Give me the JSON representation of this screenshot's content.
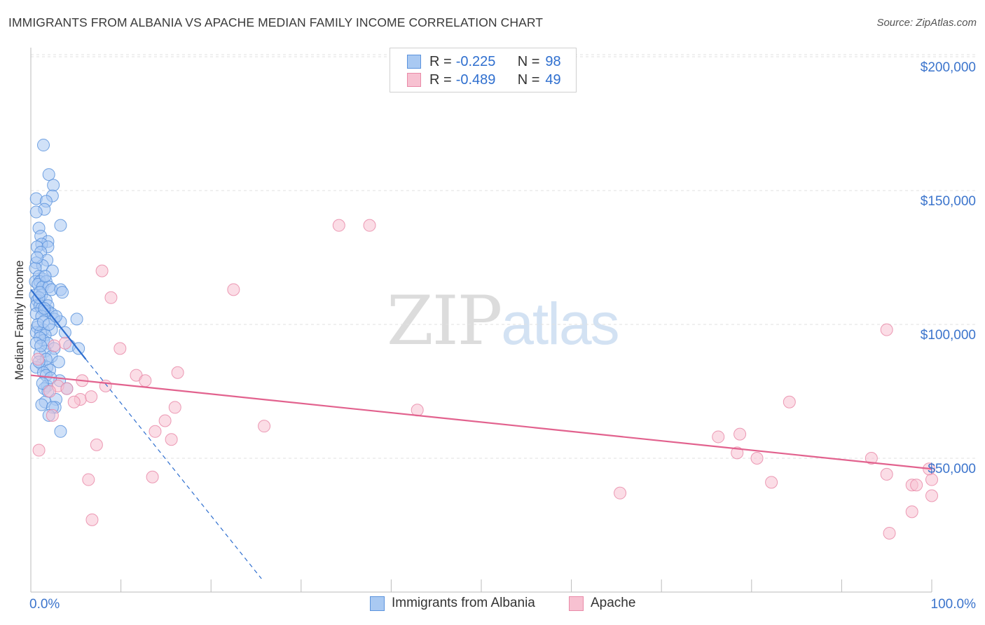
{
  "title": "IMMIGRANTS FROM ALBANIA VS APACHE MEDIAN FAMILY INCOME CORRELATION CHART",
  "source": "Source: ZipAtlas.com",
  "watermark": {
    "zip": "ZIP",
    "atlas": "atlas"
  },
  "colors": {
    "blue_fill": "#a9c9f2",
    "blue_stroke": "#5b93dd",
    "blue_line": "#2f6fcf",
    "pink_fill": "#f7c1d1",
    "pink_stroke": "#e98aa8",
    "pink_line": "#e2628e",
    "tick_text": "#3b74cc",
    "grid": "#e2e2e2"
  },
  "legend": {
    "rows": [
      {
        "r_label": "R =",
        "r_value": "-0.225",
        "n_label": "N =",
        "n_value": "98"
      },
      {
        "r_label": "R =",
        "r_value": "-0.489",
        "n_label": "N =",
        "n_value": "49"
      }
    ]
  },
  "bottom_legend": [
    "Immigrants from Albania",
    "Apache"
  ],
  "chart_data": {
    "type": "scatter",
    "xlabel": "",
    "ylabel": "Median Family Income",
    "xlim": [
      0,
      100
    ],
    "ylim": [
      0,
      205000
    ],
    "x_tick_labels": [
      "0.0%",
      "100.0%"
    ],
    "y_ticks": [
      50000,
      100000,
      150000,
      200000
    ],
    "y_tick_labels": [
      "$50,000",
      "$100,000",
      "$150,000",
      "$200,000"
    ],
    "series": [
      {
        "name": "Immigrants from Albania",
        "color": "blue",
        "trend": {
          "x": [
            0,
            6.1
          ],
          "y": [
            113000,
            87000
          ],
          "dashed_to": [
            25.6,
            5000
          ]
        },
        "points": [
          [
            1.4,
            167000
          ],
          [
            2.0,
            156000
          ],
          [
            2.5,
            152000
          ],
          [
            2.4,
            148000
          ],
          [
            0.6,
            147000
          ],
          [
            1.7,
            146000
          ],
          [
            1.5,
            143000
          ],
          [
            0.6,
            142000
          ],
          [
            3.3,
            137000
          ],
          [
            0.9,
            136000
          ],
          [
            1.1,
            133000
          ],
          [
            1.9,
            131000
          ],
          [
            1.2,
            130000
          ],
          [
            0.7,
            129000
          ],
          [
            1.9,
            129000
          ],
          [
            1.1,
            127000
          ],
          [
            1.8,
            124000
          ],
          [
            0.6,
            123000
          ],
          [
            1.3,
            122000
          ],
          [
            0.5,
            121000
          ],
          [
            0.9,
            118000
          ],
          [
            1.3,
            117000
          ],
          [
            0.5,
            116000
          ],
          [
            1.0,
            116000
          ],
          [
            1.7,
            116000
          ],
          [
            0.8,
            115000
          ],
          [
            1.3,
            114000
          ],
          [
            2.0,
            114000
          ],
          [
            2.3,
            113000
          ],
          [
            3.3,
            113000
          ],
          [
            3.5,
            112000
          ],
          [
            0.5,
            111000
          ],
          [
            1.2,
            111000
          ],
          [
            0.7,
            109000
          ],
          [
            1.7,
            109000
          ],
          [
            0.6,
            107000
          ],
          [
            1.0,
            107000
          ],
          [
            1.9,
            107000
          ],
          [
            1.2,
            106000
          ],
          [
            1.9,
            105000
          ],
          [
            1.5,
            105000
          ],
          [
            0.6,
            104000
          ],
          [
            2.3,
            104000
          ],
          [
            1.2,
            103000
          ],
          [
            2.6,
            102000
          ],
          [
            5.1,
            102000
          ],
          [
            3.3,
            101000
          ],
          [
            0.7,
            99000
          ],
          [
            1.4,
            98000
          ],
          [
            2.3,
            98000
          ],
          [
            3.8,
            97000
          ],
          [
            0.6,
            97000
          ],
          [
            1.1,
            97000
          ],
          [
            1.6,
            96000
          ],
          [
            1.4,
            94000
          ],
          [
            1.9,
            93000
          ],
          [
            4.3,
            92000
          ],
          [
            2.6,
            91000
          ],
          [
            1.6,
            90000
          ],
          [
            5.3,
            91000
          ],
          [
            1.0,
            89000
          ],
          [
            2.3,
            88000
          ],
          [
            3.1,
            86000
          ],
          [
            1.2,
            85000
          ],
          [
            0.6,
            84000
          ],
          [
            1.8,
            84000
          ],
          [
            2.1,
            83000
          ],
          [
            1.4,
            82000
          ],
          [
            1.7,
            81000
          ],
          [
            3.2,
            79000
          ],
          [
            1.8,
            77000
          ],
          [
            1.5,
            76000
          ],
          [
            4.0,
            76000
          ],
          [
            1.9,
            75000
          ],
          [
            2.8,
            72000
          ],
          [
            1.6,
            71000
          ],
          [
            1.2,
            70000
          ],
          [
            2.7,
            69000
          ],
          [
            2.4,
            69000
          ],
          [
            2.0,
            66000
          ],
          [
            3.3,
            60000
          ],
          [
            1.0,
            95000
          ],
          [
            0.8,
            100000
          ],
          [
            1.4,
            101000
          ],
          [
            2.0,
            100000
          ],
          [
            0.6,
            93000
          ],
          [
            1.1,
            92000
          ],
          [
            1.7,
            87000
          ],
          [
            0.9,
            86000
          ],
          [
            2.2,
            80000
          ],
          [
            1.3,
            78000
          ],
          [
            0.9,
            110000
          ],
          [
            2.4,
            120000
          ],
          [
            1.6,
            118000
          ],
          [
            0.7,
            125000
          ],
          [
            2.8,
            103000
          ],
          [
            1.0,
            112000
          ],
          [
            1.5,
            106000
          ]
        ]
      },
      {
        "name": "Apache",
        "color": "pink",
        "trend": {
          "x": [
            0,
            100
          ],
          "y": [
            81000,
            46000
          ]
        },
        "points": [
          [
            34.2,
            137000
          ],
          [
            37.6,
            137000
          ],
          [
            7.9,
            120000
          ],
          [
            22.5,
            113000
          ],
          [
            8.9,
            110000
          ],
          [
            95.0,
            98000
          ],
          [
            3.8,
            93000
          ],
          [
            2.6,
            92000
          ],
          [
            9.9,
            91000
          ],
          [
            0.8,
            87000
          ],
          [
            16.3,
            82000
          ],
          [
            11.7,
            81000
          ],
          [
            12.7,
            79000
          ],
          [
            5.7,
            79000
          ],
          [
            3.0,
            77000
          ],
          [
            8.3,
            77000
          ],
          [
            4.0,
            76000
          ],
          [
            2.1,
            75000
          ],
          [
            5.5,
            72000
          ],
          [
            6.7,
            73000
          ],
          [
            4.8,
            71000
          ],
          [
            84.2,
            71000
          ],
          [
            16.0,
            69000
          ],
          [
            42.9,
            68000
          ],
          [
            2.4,
            66000
          ],
          [
            14.9,
            64000
          ],
          [
            25.9,
            62000
          ],
          [
            13.8,
            60000
          ],
          [
            78.7,
            59000
          ],
          [
            76.3,
            58000
          ],
          [
            15.6,
            57000
          ],
          [
            7.3,
            55000
          ],
          [
            78.4,
            52000
          ],
          [
            80.6,
            50000
          ],
          [
            93.3,
            50000
          ],
          [
            0.9,
            53000
          ],
          [
            95.0,
            44000
          ],
          [
            13.5,
            43000
          ],
          [
            6.4,
            42000
          ],
          [
            97.8,
            40000
          ],
          [
            100.0,
            42000
          ],
          [
            99.7,
            46000
          ],
          [
            82.2,
            41000
          ],
          [
            98.3,
            40000
          ],
          [
            65.4,
            37000
          ],
          [
            100.0,
            36000
          ],
          [
            97.8,
            30000
          ],
          [
            6.8,
            27000
          ],
          [
            95.3,
            22000
          ]
        ]
      }
    ]
  }
}
